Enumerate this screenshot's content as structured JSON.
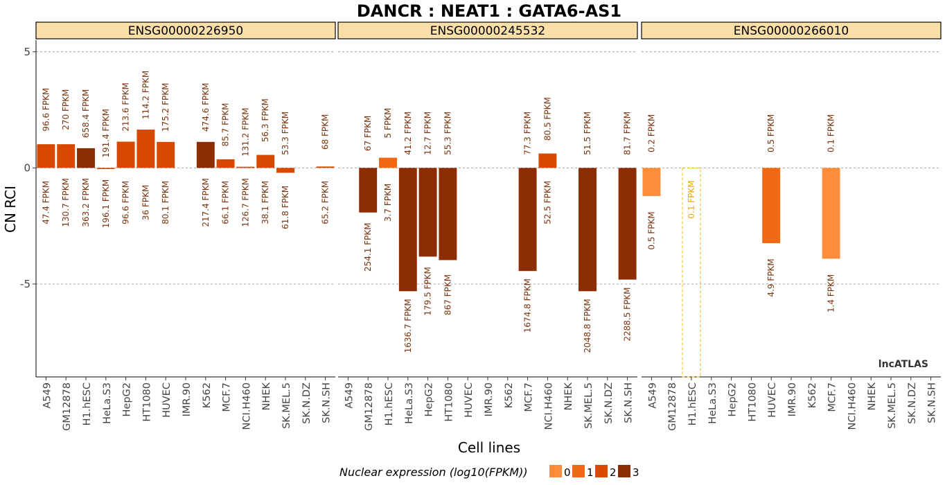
{
  "title": "DANCR : NEAT1 : GATA6-AS1",
  "watermark": "lncATLAS",
  "chart_data": {
    "type": "bar",
    "title": "DANCR : NEAT1 : GATA6-AS1",
    "xlabel": "Cell lines",
    "ylabel": "CN RCI",
    "ylim": [
      -9,
      5.5
    ],
    "yticks": [
      5,
      0,
      -5
    ],
    "ytick_labels": [
      "5",
      "0",
      "-5"
    ],
    "grid": true,
    "categories": [
      "A549",
      "GM12878",
      "H1.hESC",
      "HeLa.S3",
      "HepG2",
      "HT1080",
      "HUVEC",
      "IMR.90",
      "K562",
      "MCF.7",
      "NCI.H460",
      "NHEK",
      "SK.MEL.5",
      "SK.N.DZ",
      "SK.N.SH"
    ],
    "legend": {
      "title": "Nuclear expression (log10(FPKM))",
      "position": "bottom",
      "items": [
        {
          "label": "0",
          "color": "#FD8D3C"
        },
        {
          "label": "1",
          "color": "#F16913"
        },
        {
          "label": "2",
          "color": "#D94801"
        },
        {
          "label": "3",
          "color": "#8C2D04"
        }
      ]
    },
    "panels": [
      {
        "gene": "ENSG00000226950",
        "bars": [
          {
            "cell": "A549",
            "rci": 1.02,
            "level": 2,
            "cyto": "96.6 FPKM",
            "nuc": "47.4 FPKM"
          },
          {
            "cell": "GM12878",
            "rci": 1.02,
            "level": 2,
            "cyto": "270 FPKM",
            "nuc": "130.7 FPKM"
          },
          {
            "cell": "H1.hESC",
            "rci": 0.85,
            "level": 3,
            "cyto": "658.4 FPKM",
            "nuc": "363.2 FPKM"
          },
          {
            "cell": "HeLa.S3",
            "rci": -0.05,
            "level": 2,
            "cyto": "191.4 FPKM",
            "nuc": "196.1 FPKM"
          },
          {
            "cell": "HepG2",
            "rci": 1.13,
            "level": 2,
            "cyto": "213.6 FPKM",
            "nuc": "96.6 FPKM"
          },
          {
            "cell": "HT1080",
            "rci": 1.65,
            "level": 2,
            "cyto": "114.2 FPKM",
            "nuc": "36 FPKM"
          },
          {
            "cell": "HUVEC",
            "rci": 1.12,
            "level": 2,
            "cyto": "175.2 FPKM",
            "nuc": "80.1 FPKM"
          },
          {
            "cell": "K562",
            "rci": 1.12,
            "level": 3,
            "cyto": "474.6 FPKM",
            "nuc": "217.4 FPKM"
          },
          {
            "cell": "MCF.7",
            "rci": 0.37,
            "level": 2,
            "cyto": "85.7 FPKM",
            "nuc": "66.1 FPKM"
          },
          {
            "cell": "NCI.H460",
            "rci": 0.05,
            "level": 2,
            "cyto": "131.2 FPKM",
            "nuc": "126.7 FPKM"
          },
          {
            "cell": "NHEK",
            "rci": 0.56,
            "level": 2,
            "cyto": "56.3 FPKM",
            "nuc": "38.1 FPKM"
          },
          {
            "cell": "SK.MEL.5",
            "rci": -0.21,
            "level": 2,
            "cyto": "53.3 FPKM",
            "nuc": "61.8 FPKM"
          },
          {
            "cell": "SK.N.SH",
            "rci": 0.06,
            "level": 2,
            "cyto": "68 FPKM",
            "nuc": "65.2 FPKM"
          }
        ]
      },
      {
        "gene": "ENSG00000245532",
        "bars": [
          {
            "cell": "GM12878",
            "rci": -1.92,
            "level": 3,
            "cyto": "67 FPKM",
            "nuc": "254.1 FPKM"
          },
          {
            "cell": "H1.hESC",
            "rci": 0.44,
            "level": 1,
            "cyto": "5 FPKM",
            "nuc": "3.7 FPKM"
          },
          {
            "cell": "HeLa.S3",
            "rci": -5.31,
            "level": 3,
            "cyto": "41.2 FPKM",
            "nuc": "1636.7 FPKM"
          },
          {
            "cell": "HepG2",
            "rci": -3.82,
            "level": 3,
            "cyto": "12.7 FPKM",
            "nuc": "179.5 FPKM"
          },
          {
            "cell": "HT1080",
            "rci": -3.97,
            "level": 3,
            "cyto": "55.3 FPKM",
            "nuc": "867 FPKM"
          },
          {
            "cell": "MCF.7",
            "rci": -4.44,
            "level": 3,
            "cyto": "77.3 FPKM",
            "nuc": "1674.8 FPKM"
          },
          {
            "cell": "NCI.H460",
            "rci": 0.62,
            "level": 2,
            "cyto": "80.5 FPKM",
            "nuc": "52.5 FPKM"
          },
          {
            "cell": "SK.MEL.5",
            "rci": -5.31,
            "level": 3,
            "cyto": "51.5 FPKM",
            "nuc": "2048.8 FPKM"
          },
          {
            "cell": "SK.N.SH",
            "rci": -4.81,
            "level": 3,
            "cyto": "81.7 FPKM",
            "nuc": "2288.5 FPKM"
          }
        ]
      },
      {
        "gene": "ENSG00000266010",
        "bars": [
          {
            "cell": "A549",
            "rci": -1.21,
            "level": 0,
            "cyto": "0.2 FPKM",
            "nuc": "0.5 FPKM"
          },
          {
            "cell": "H1.hESC",
            "rci": -9.0,
            "level": 0,
            "outline": true,
            "cyto": "",
            "nuc": "0.1 FPKM"
          },
          {
            "cell": "HUVEC",
            "rci": -3.24,
            "level": 1,
            "cyto": "0.5 FPKM",
            "nuc": "4.9 FPKM"
          },
          {
            "cell": "MCF.7",
            "rci": -3.91,
            "level": 0,
            "cyto": "0.1 FPKM",
            "nuc": "1.4 FPKM"
          }
        ]
      }
    ]
  }
}
